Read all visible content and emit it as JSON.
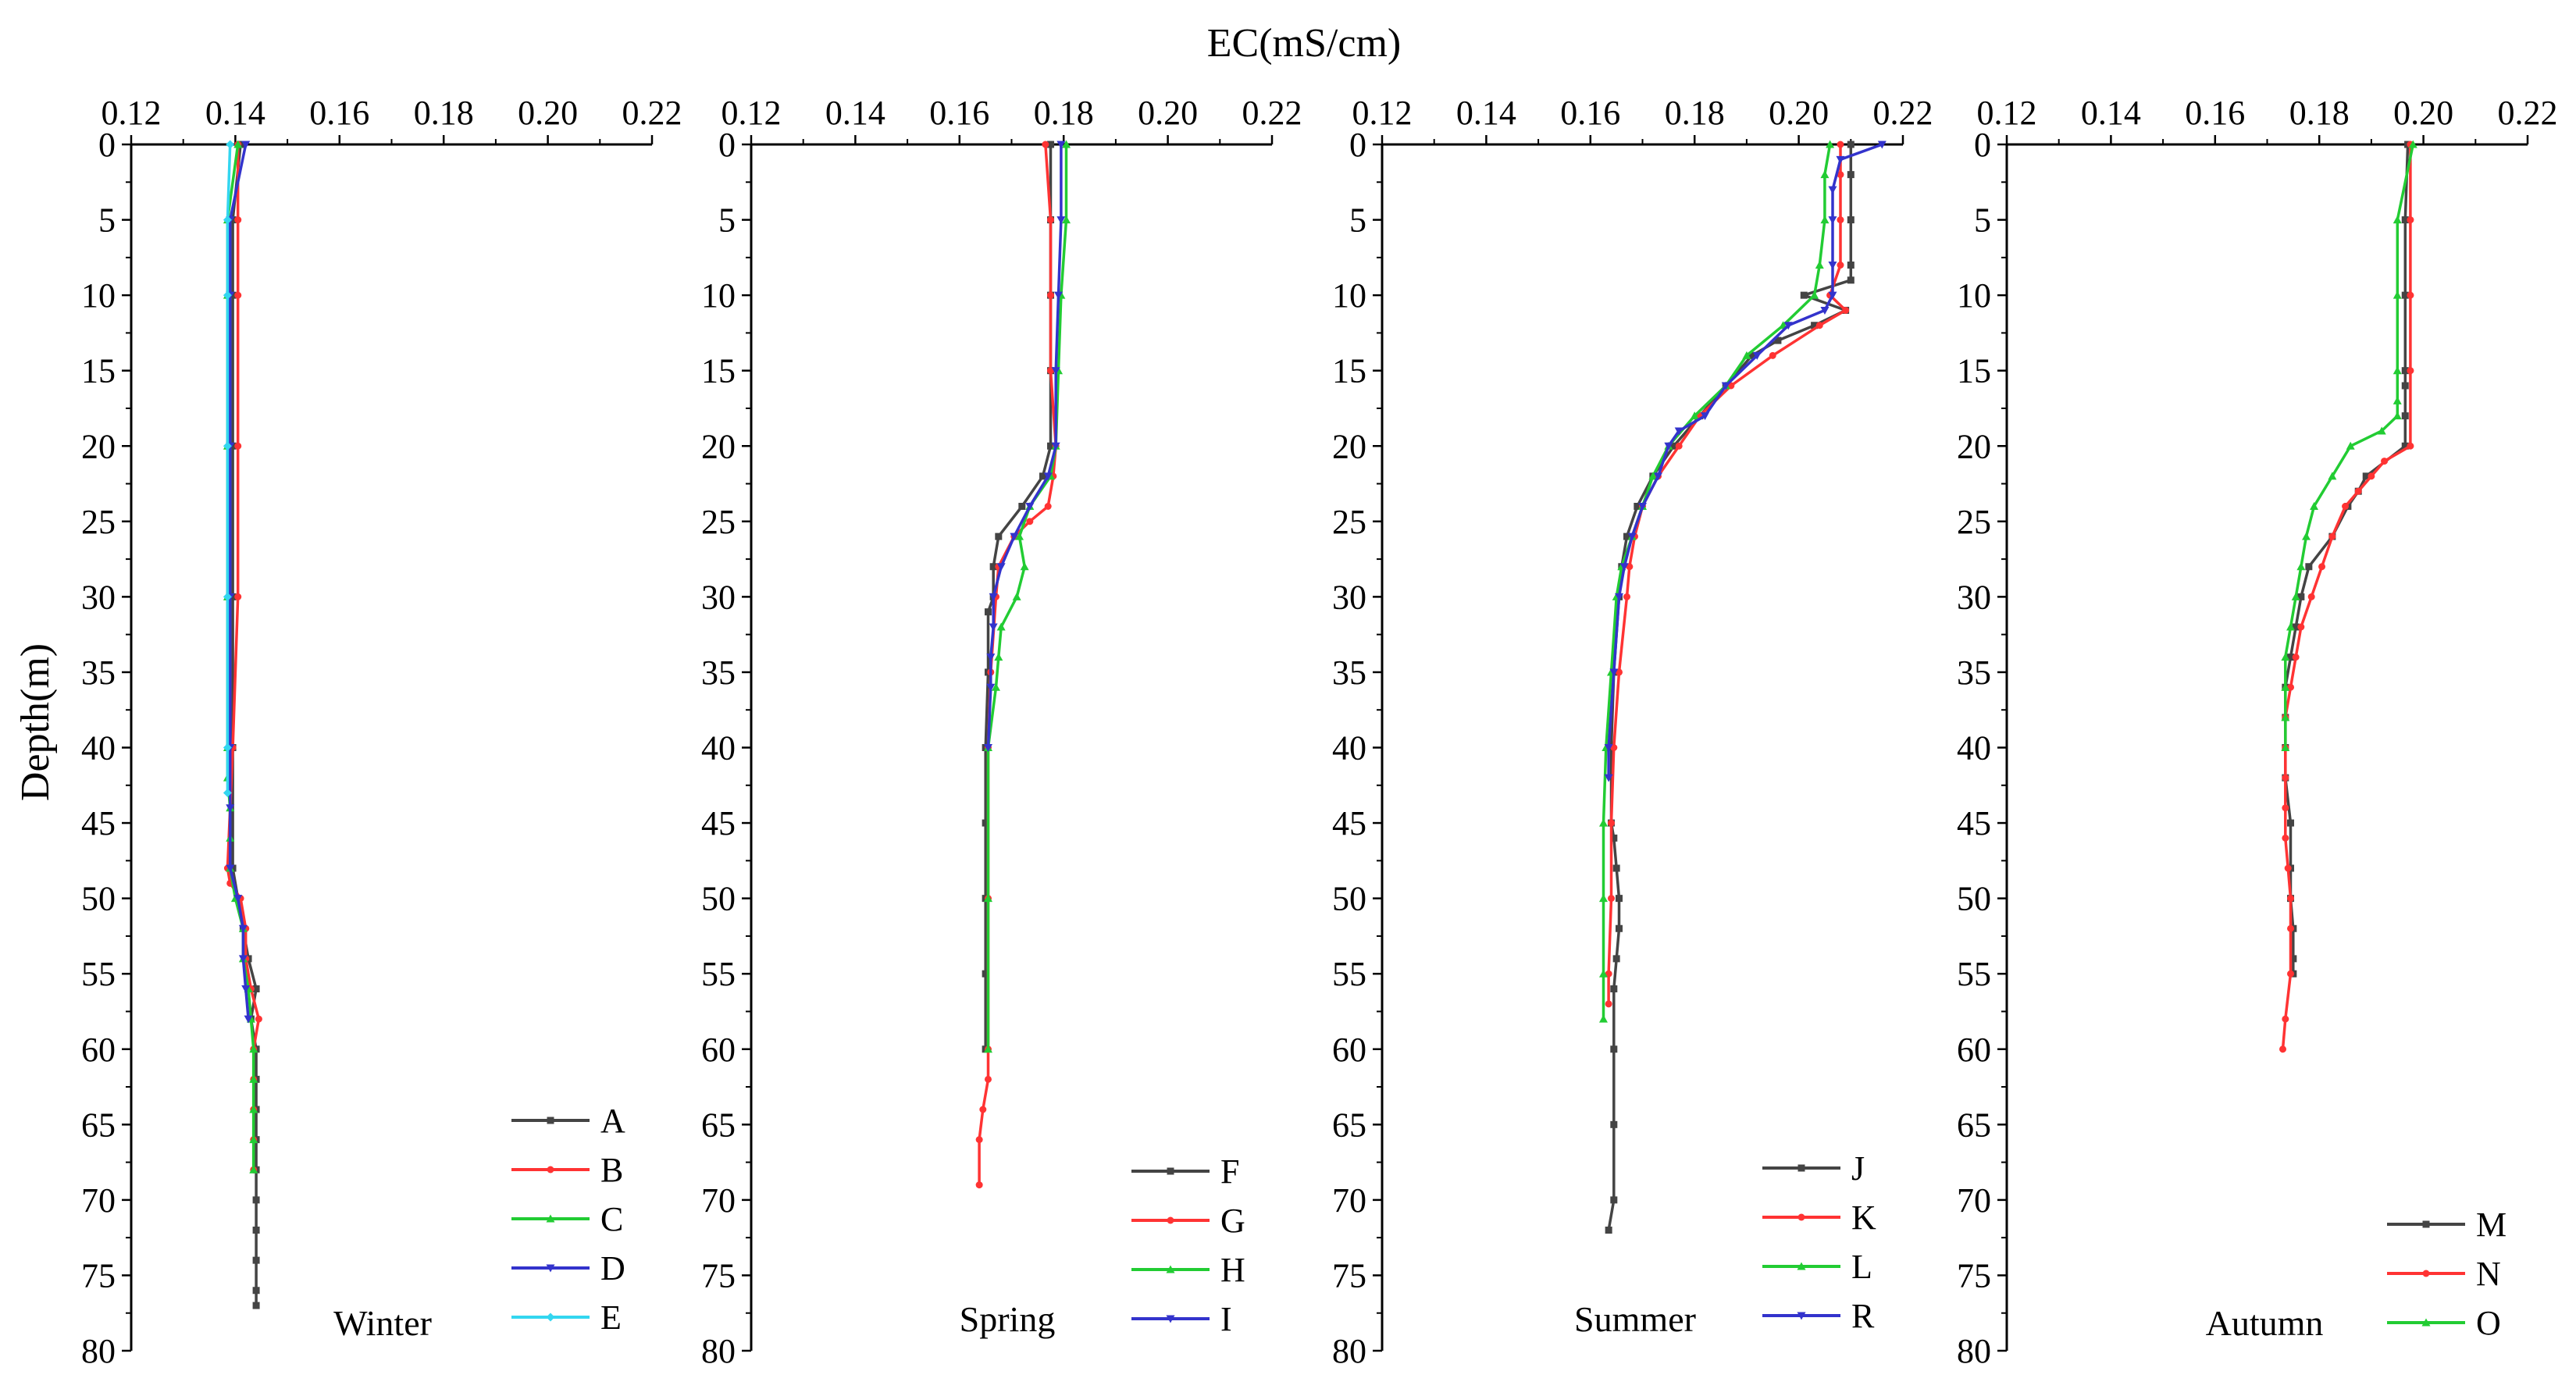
{
  "figure": {
    "x_axis_title": "EC(mS/cm)",
    "y_axis_title": "Depth(m)"
  },
  "chart_data": [
    {
      "type": "line",
      "title": "",
      "season": "Winter",
      "xlim": [
        0.12,
        0.22
      ],
      "ylim": [
        0,
        80
      ],
      "y_inverted": true,
      "xticks": [
        "0.12",
        "0.14",
        "0.16",
        "0.18",
        "0.20",
        "0.22"
      ],
      "yticks": [
        "0",
        "5",
        "10",
        "15",
        "20",
        "25",
        "30",
        "35",
        "40",
        "45",
        "50",
        "55",
        "60",
        "65",
        "70",
        "75",
        "80"
      ],
      "legend_position": "bottom-right",
      "series": [
        {
          "name": "A",
          "color": "#444444",
          "marker": "square",
          "depth": [
            0,
            5,
            10,
            20,
            30,
            40,
            48,
            50,
            52,
            54,
            56,
            58,
            60,
            62,
            64,
            66,
            68,
            70,
            72,
            74,
            76,
            77
          ],
          "ec": [
            0.141,
            0.1395,
            0.1395,
            0.1395,
            0.1395,
            0.1395,
            0.1395,
            0.1405,
            0.1415,
            0.1425,
            0.144,
            0.143,
            0.144,
            0.144,
            0.144,
            0.144,
            0.144,
            0.144,
            0.144,
            0.144,
            0.144,
            0.144
          ]
        },
        {
          "name": "B",
          "color": "#ff3333",
          "marker": "circle",
          "depth": [
            0,
            5,
            10,
            20,
            30,
            40,
            48,
            49,
            50,
            52,
            54,
            56,
            58,
            60,
            62,
            64,
            66,
            68
          ],
          "ec": [
            0.1405,
            0.1405,
            0.1405,
            0.1405,
            0.1405,
            0.1395,
            0.1385,
            0.139,
            0.141,
            0.142,
            0.142,
            0.143,
            0.1445,
            0.1435,
            0.1435,
            0.1435,
            0.1435,
            0.1435
          ]
        },
        {
          "name": "C",
          "color": "#22cc33",
          "marker": "triangle-up",
          "depth": [
            0,
            5,
            10,
            20,
            30,
            40,
            42,
            44,
            46,
            48,
            50,
            52,
            54,
            56,
            58,
            60,
            62,
            64,
            66,
            68
          ],
          "ec": [
            0.1405,
            0.1385,
            0.1385,
            0.1385,
            0.1385,
            0.1385,
            0.1385,
            0.139,
            0.139,
            0.139,
            0.14,
            0.1415,
            0.1415,
            0.1425,
            0.143,
            0.1435,
            0.1435,
            0.1435,
            0.1435,
            0.1435
          ]
        },
        {
          "name": "D",
          "color": "#3333cc",
          "marker": "triangle-down",
          "depth": [
            0,
            5,
            10,
            20,
            30,
            40,
            44,
            48,
            50,
            52,
            54,
            56,
            58
          ],
          "ec": [
            0.142,
            0.139,
            0.139,
            0.139,
            0.139,
            0.139,
            0.139,
            0.139,
            0.1405,
            0.1415,
            0.1415,
            0.142,
            0.1425
          ]
        },
        {
          "name": "E",
          "color": "#33d6f0",
          "marker": "diamond",
          "depth": [
            0,
            5,
            10,
            20,
            30,
            40,
            43
          ],
          "ec": [
            0.139,
            0.1385,
            0.1385,
            0.1385,
            0.1385,
            0.1385,
            0.1385
          ]
        }
      ]
    },
    {
      "type": "line",
      "title": "",
      "season": "Spring",
      "xlim": [
        0.12,
        0.22
      ],
      "ylim": [
        0,
        80
      ],
      "y_inverted": true,
      "xticks": [
        "0.12",
        "0.14",
        "0.16",
        "0.18",
        "0.20",
        "0.22"
      ],
      "yticks": [
        "0",
        "5",
        "10",
        "15",
        "20",
        "25",
        "30",
        "35",
        "40",
        "45",
        "50",
        "55",
        "60",
        "65",
        "70",
        "75",
        "80"
      ],
      "legend_position": "bottom-right",
      "series": [
        {
          "name": "F",
          "color": "#444444",
          "marker": "square",
          "depth": [
            0,
            5,
            10,
            15,
            20,
            22,
            24,
            26,
            28,
            30,
            31,
            35,
            40,
            45,
            50,
            55,
            60
          ],
          "ec": [
            0.1775,
            0.1775,
            0.1775,
            0.1775,
            0.1775,
            0.176,
            0.172,
            0.1675,
            0.1665,
            0.1665,
            0.1655,
            0.1655,
            0.165,
            0.165,
            0.165,
            0.165,
            0.165
          ]
        },
        {
          "name": "G",
          "color": "#ff3333",
          "marker": "circle",
          "depth": [
            0,
            5,
            10,
            15,
            20,
            22,
            24,
            25,
            26,
            28,
            30,
            35,
            40,
            50,
            60,
            62,
            64,
            66,
            69
          ],
          "ec": [
            0.1765,
            0.1775,
            0.1775,
            0.1775,
            0.1785,
            0.178,
            0.177,
            0.1735,
            0.1705,
            0.1675,
            0.167,
            0.166,
            0.1655,
            0.1655,
            0.1655,
            0.1655,
            0.1645,
            0.1638,
            0.1638
          ]
        },
        {
          "name": "H",
          "color": "#22cc33",
          "marker": "triangle-up",
          "depth": [
            0,
            5,
            10,
            15,
            20,
            22,
            24,
            26,
            28,
            30,
            32,
            34,
            36,
            40,
            50,
            60
          ],
          "ec": [
            0.1805,
            0.1805,
            0.1795,
            0.179,
            0.1785,
            0.1775,
            0.1735,
            0.1715,
            0.1725,
            0.171,
            0.168,
            0.1675,
            0.167,
            0.1655,
            0.1655,
            0.1655
          ]
        },
        {
          "name": "I",
          "color": "#3333cc",
          "marker": "triangle-down",
          "depth": [
            0,
            5,
            10,
            15,
            20,
            22,
            24,
            26,
            28,
            30,
            32,
            34,
            36,
            40
          ],
          "ec": [
            0.1795,
            0.1795,
            0.179,
            0.1785,
            0.1785,
            0.177,
            0.1735,
            0.1705,
            0.168,
            0.1665,
            0.1665,
            0.166,
            0.166,
            0.1655
          ]
        }
      ]
    },
    {
      "type": "line",
      "title": "",
      "season": "Summer",
      "xlim": [
        0.12,
        0.22
      ],
      "ylim": [
        0,
        80
      ],
      "y_inverted": true,
      "xticks": [
        "0.12",
        "0.14",
        "0.16",
        "0.18",
        "0.20",
        "0.22"
      ],
      "yticks": [
        "0",
        "5",
        "10",
        "15",
        "20",
        "25",
        "30",
        "35",
        "40",
        "45",
        "50",
        "55",
        "60",
        "65",
        "70",
        "75",
        "80"
      ],
      "legend_position": "bottom-right",
      "series": [
        {
          "name": "J",
          "color": "#444444",
          "marker": "square",
          "depth": [
            0,
            2,
            5,
            8,
            9,
            10,
            11,
            12,
            13,
            14,
            16,
            18,
            20,
            22,
            24,
            26,
            28,
            30,
            35,
            40,
            45,
            46,
            48,
            50,
            52,
            54,
            56,
            60,
            65,
            70,
            72
          ],
          "ec": [
            0.21,
            0.21,
            0.21,
            0.21,
            0.21,
            0.201,
            0.209,
            0.203,
            0.196,
            0.191,
            0.186,
            0.181,
            0.176,
            0.172,
            0.169,
            0.167,
            0.166,
            0.1655,
            0.1645,
            0.164,
            0.164,
            0.1645,
            0.165,
            0.1655,
            0.1655,
            0.165,
            0.1645,
            0.1645,
            0.1645,
            0.1645,
            0.1635
          ]
        },
        {
          "name": "K",
          "color": "#ff3333",
          "marker": "circle",
          "depth": [
            0,
            2,
            5,
            8,
            10,
            11,
            12,
            14,
            16,
            18,
            20,
            22,
            24,
            26,
            28,
            30,
            35,
            40,
            45,
            50,
            55,
            57
          ],
          "ec": [
            0.208,
            0.208,
            0.208,
            0.208,
            0.206,
            0.209,
            0.204,
            0.195,
            0.187,
            0.181,
            0.177,
            0.173,
            0.17,
            0.1685,
            0.1675,
            0.167,
            0.1655,
            0.1645,
            0.164,
            0.164,
            0.1635,
            0.1635
          ]
        },
        {
          "name": "L",
          "color": "#22cc33",
          "marker": "triangle-up",
          "depth": [
            0,
            2,
            5,
            8,
            10,
            12,
            14,
            16,
            18,
            20,
            22,
            24,
            26,
            28,
            30,
            35,
            40,
            45,
            50,
            55,
            58
          ],
          "ec": [
            0.206,
            0.205,
            0.205,
            0.204,
            0.203,
            0.197,
            0.19,
            0.186,
            0.18,
            0.175,
            0.172,
            0.17,
            0.168,
            0.166,
            0.165,
            0.164,
            0.163,
            0.1625,
            0.1625,
            0.1625,
            0.1625
          ]
        },
        {
          "name": "R",
          "color": "#3333cc",
          "marker": "triangle-down",
          "depth": [
            0,
            1,
            3,
            5,
            8,
            10,
            11,
            12,
            14,
            16,
            18,
            19,
            20,
            22,
            24,
            26,
            28,
            30,
            35,
            40,
            42
          ],
          "ec": [
            0.216,
            0.208,
            0.2065,
            0.2065,
            0.2065,
            0.2065,
            0.205,
            0.198,
            0.192,
            0.186,
            0.182,
            0.177,
            0.175,
            0.173,
            0.17,
            0.168,
            0.1665,
            0.1655,
            0.1645,
            0.1635,
            0.1635
          ]
        }
      ]
    },
    {
      "type": "line",
      "title": "",
      "season": "Autumn",
      "xlim": [
        0.12,
        0.22
      ],
      "ylim": [
        0,
        80
      ],
      "y_inverted": true,
      "xticks": [
        "0.12",
        "0.14",
        "0.16",
        "0.18",
        "0.20",
        "0.22"
      ],
      "yticks": [
        "0",
        "5",
        "10",
        "15",
        "20",
        "25",
        "30",
        "35",
        "40",
        "45",
        "50",
        "55",
        "60",
        "65",
        "70",
        "75",
        "80"
      ],
      "legend_position": "bottom-right",
      "series": [
        {
          "name": "M",
          "color": "#444444",
          "marker": "square",
          "depth": [
            0,
            5,
            10,
            15,
            16,
            18,
            20,
            22,
            23,
            24,
            26,
            28,
            30,
            32,
            34,
            36,
            38,
            40,
            42,
            45,
            48,
            50,
            52,
            54,
            55
          ],
          "ec": [
            0.197,
            0.1965,
            0.1965,
            0.1965,
            0.1965,
            0.1965,
            0.1965,
            0.189,
            0.1875,
            0.1855,
            0.1825,
            0.178,
            0.1765,
            0.1755,
            0.1745,
            0.1735,
            0.1735,
            0.1735,
            0.1735,
            0.1745,
            0.1745,
            0.1745,
            0.175,
            0.175,
            0.175
          ]
        },
        {
          "name": "N",
          "color": "#ff3333",
          "marker": "circle",
          "depth": [
            0,
            5,
            10,
            15,
            20,
            21,
            22,
            23,
            24,
            26,
            28,
            30,
            32,
            34,
            36,
            38,
            40,
            42,
            44,
            46,
            48,
            50,
            52,
            55,
            58,
            60
          ],
          "ec": [
            0.1975,
            0.1975,
            0.1975,
            0.1975,
            0.1975,
            0.1925,
            0.19,
            0.1875,
            0.185,
            0.1825,
            0.1805,
            0.1785,
            0.1765,
            0.1755,
            0.1745,
            0.1735,
            0.1735,
            0.1735,
            0.1735,
            0.1735,
            0.174,
            0.1745,
            0.1745,
            0.1745,
            0.1735,
            0.173
          ]
        },
        {
          "name": "O",
          "color": "#22cc33",
          "marker": "triangle-up",
          "depth": [
            0,
            5,
            10,
            15,
            17,
            18,
            19,
            20,
            22,
            24,
            26,
            28,
            30,
            32,
            34,
            36,
            38,
            40
          ],
          "ec": [
            0.198,
            0.195,
            0.195,
            0.195,
            0.195,
            0.195,
            0.192,
            0.186,
            0.1825,
            0.179,
            0.1775,
            0.1765,
            0.1755,
            0.1745,
            0.1735,
            0.1735,
            0.1735,
            0.1735
          ]
        }
      ]
    }
  ]
}
